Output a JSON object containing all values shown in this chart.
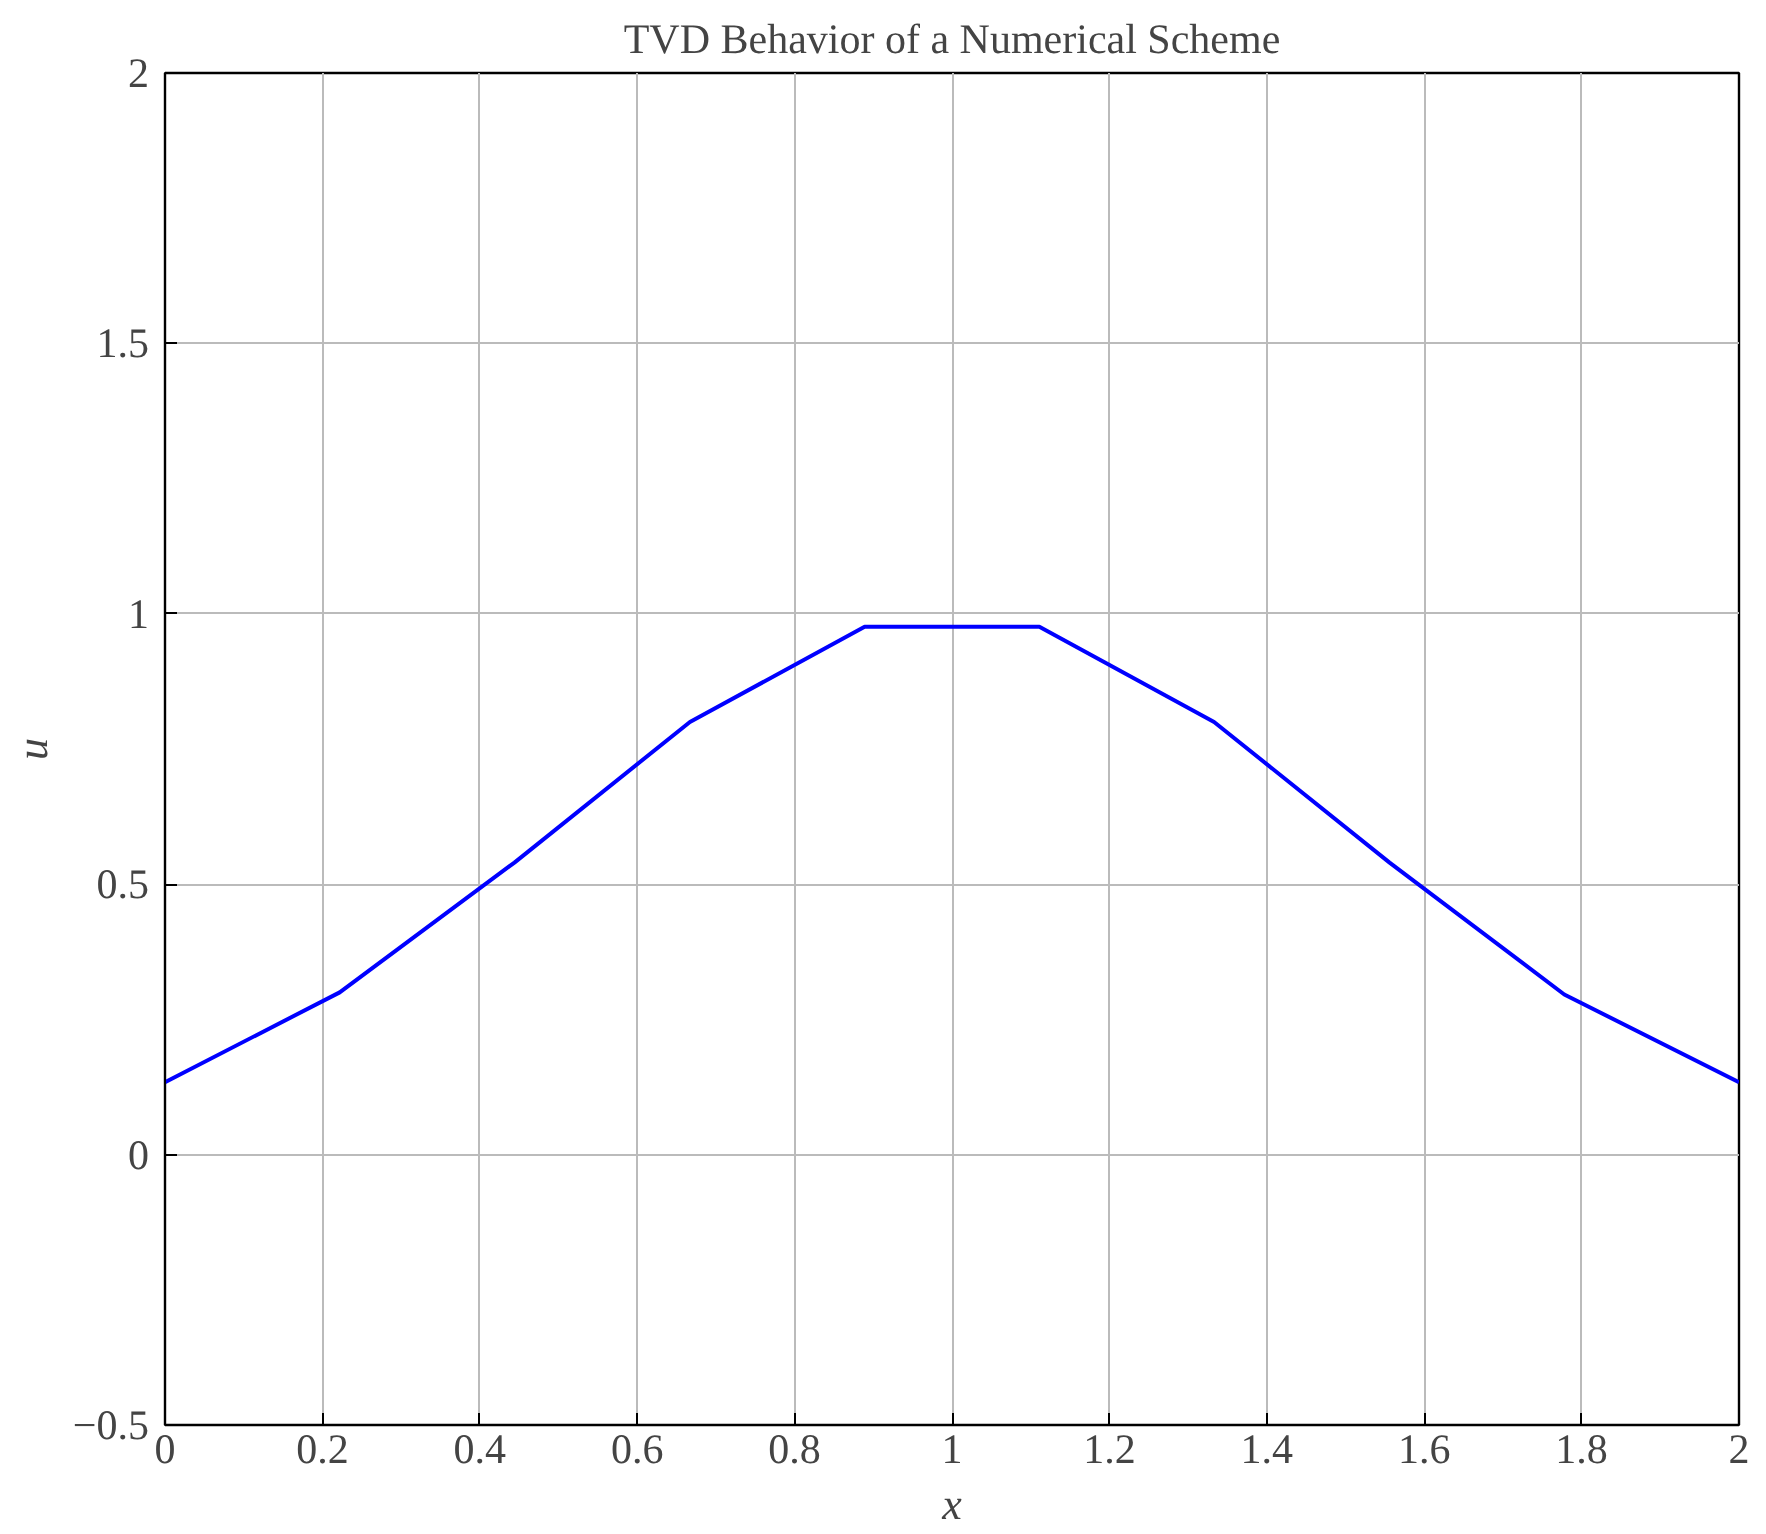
{
  "chart_data": {
    "type": "line",
    "title": "TVD Behavior of a Numerical Scheme",
    "xlabel": "x",
    "ylabel": "u",
    "x": [
      0,
      0.222,
      0.444,
      0.667,
      0.889,
      1.111,
      1.333,
      1.556,
      1.778,
      2
    ],
    "series": [
      {
        "color": "#0000ff",
        "values": [
          0.134,
          0.3,
          0.54,
          0.8,
          0.976,
          0.976,
          0.8,
          0.54,
          0.296,
          0.134
        ]
      }
    ],
    "xlim": [
      0,
      2
    ],
    "ylim": [
      -0.5,
      2
    ],
    "xticks": [
      0,
      0.2,
      0.4,
      0.6,
      0.8,
      1,
      1.2,
      1.4,
      1.6,
      1.8,
      2
    ],
    "yticks": [
      {
        "value": -0.5,
        "label": "−0.5"
      },
      0,
      0.5,
      1,
      1.5,
      2
    ],
    "grid": true,
    "marker": "none",
    "line_style": "solid"
  }
}
